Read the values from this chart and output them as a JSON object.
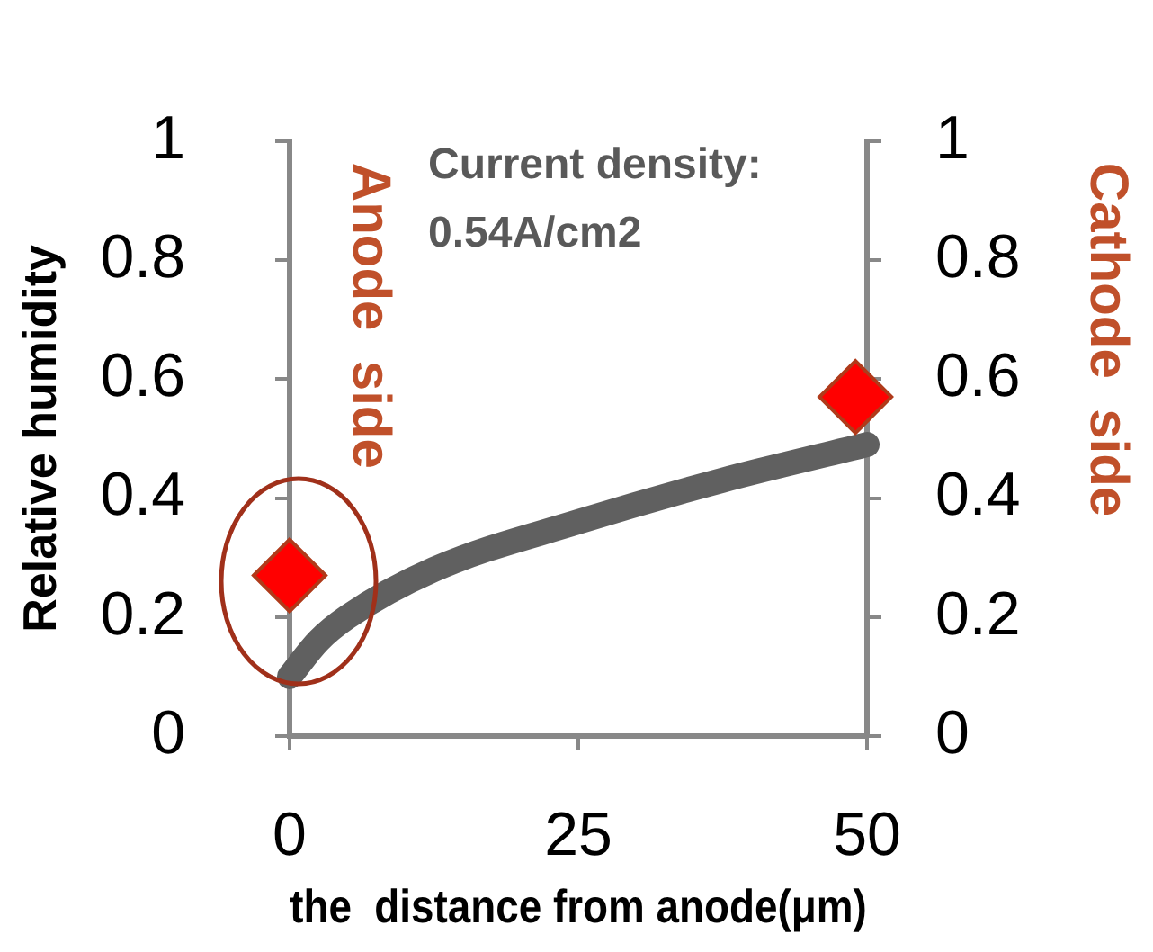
{
  "chart_data": {
    "type": "line",
    "ylabel": "Relative humidity",
    "xlabel": "the  distance from anode(μm)",
    "annotations": [
      "Current density: 0.54A/cm2",
      "Anode  side",
      "Cathode  side"
    ],
    "series": [
      {
        "color": "#606060",
        "marker": "none",
        "x": [
          0,
          2.5,
          5,
          12.5,
          25,
          37.5,
          50
        ],
        "values": [
          0.1,
          0.16,
          0.2,
          0.28,
          0.36,
          0.43,
          0.49
        ]
      },
      {
        "type": "scatter",
        "color": "#ff0000",
        "marker": "diamond",
        "x": [
          0,
          49
        ],
        "values": [
          0.27,
          0.57
        ]
      }
    ],
    "xlim": [
      0,
      50
    ],
    "xticks": [
      0,
      25,
      50
    ],
    "ylim": [
      0,
      1
    ],
    "yticks": [
      0,
      0.2,
      0.4,
      0.6,
      0.8,
      1
    ],
    "y2lim": [
      0,
      1
    ],
    "y2ticks": [
      0,
      0.2,
      0.4,
      0.6,
      0.8,
      1
    ],
    "grid": false,
    "legend": false,
    "line_style": "solid"
  }
}
